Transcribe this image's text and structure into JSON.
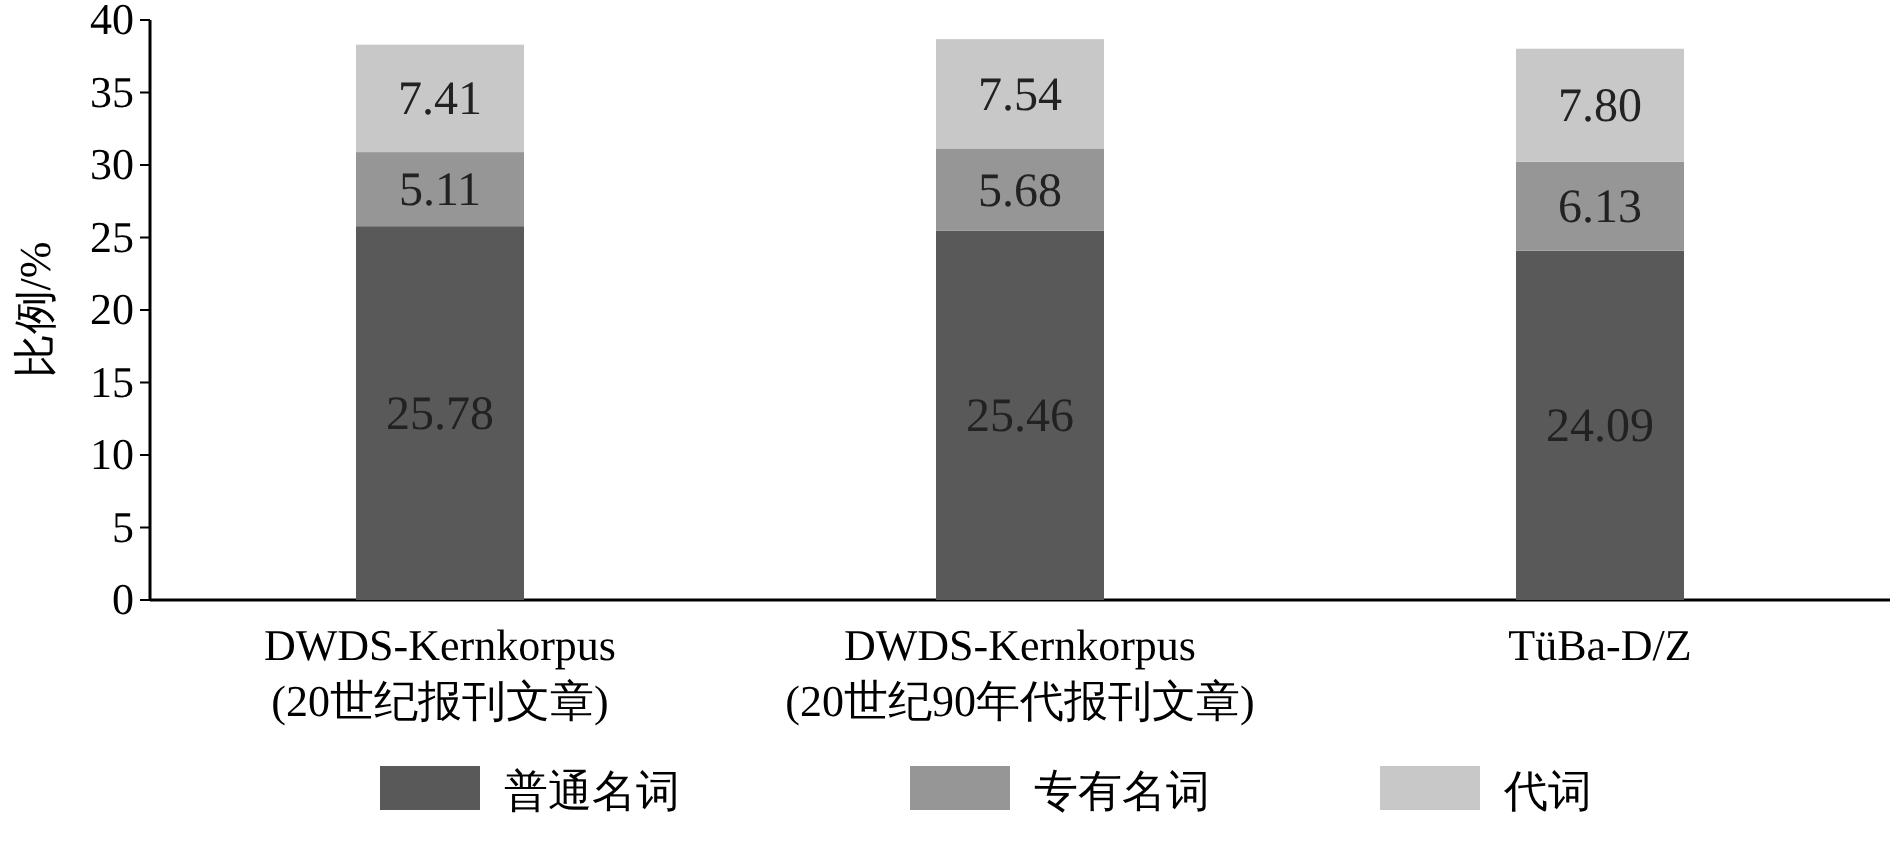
{
  "chart_data": {
    "type": "bar",
    "stacked": true,
    "ylabel": "比例/%",
    "categories": [
      "DWDS-Kernkorpus\n(20世纪报刊文章)",
      "DWDS-Kernkorpus\n(20世纪90年代报刊文章)",
      "TüBa-D/Z"
    ],
    "series": [
      {
        "name": "普通名词",
        "color": "#595959",
        "values": [
          25.78,
          25.46,
          24.09
        ],
        "value_labels": [
          "25.78",
          "25.46",
          "24.09"
        ]
      },
      {
        "name": "专有名词",
        "color": "#969696",
        "values": [
          5.11,
          5.68,
          6.13
        ],
        "value_labels": [
          "5.11",
          "5.68",
          "6.13"
        ]
      },
      {
        "name": "代词",
        "color": "#c8c8c8",
        "values": [
          7.41,
          7.54,
          7.8
        ],
        "value_labels": [
          "7.41",
          "7.54",
          "7.80"
        ]
      }
    ],
    "ylim": [
      0,
      40
    ],
    "yticks": [
      0,
      5,
      10,
      15,
      20,
      25,
      30,
      35,
      40
    ],
    "legend": "bottom",
    "grid": false
  }
}
